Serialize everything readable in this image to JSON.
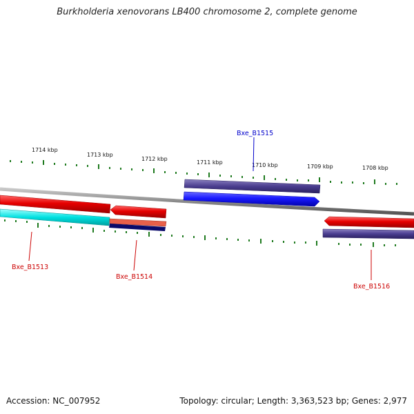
{
  "title": "Burkholderia xenovorans LB400 chromosome 2, complete genome",
  "footer": {
    "accession": "Accession: NC_007952",
    "info": "Topology: circular; Length: 3,363,523 bp; Genes: 2,977"
  },
  "scale_labels": [
    "1714 kbp",
    "1713 kbp",
    "1712 kbp",
    "1711 kbp",
    "1710 kbp",
    "1709 kbp",
    "1708 kbp"
  ],
  "genes": [
    {
      "id": "Bxe_B1513",
      "strand": "forward",
      "color": "#cc0000"
    },
    {
      "id": "Bxe_B1514",
      "strand": "forward",
      "color": "#cc0000"
    },
    {
      "id": "Bxe_B1515",
      "strand": "reverse",
      "color": "#0000cc"
    },
    {
      "id": "Bxe_B1516",
      "strand": "forward",
      "color": "#cc0000"
    }
  ],
  "colors": {
    "backbone": "#8a8a8a",
    "tick": "#1e7a1e",
    "cds_red": "#e60000",
    "cds_blue": "#1a1aff",
    "cds_cyan": "#00e0e0",
    "cds_purple": "#4a3d8f",
    "cds_navy": "#0a0a6a",
    "cds_salmon": "#e8604a"
  }
}
